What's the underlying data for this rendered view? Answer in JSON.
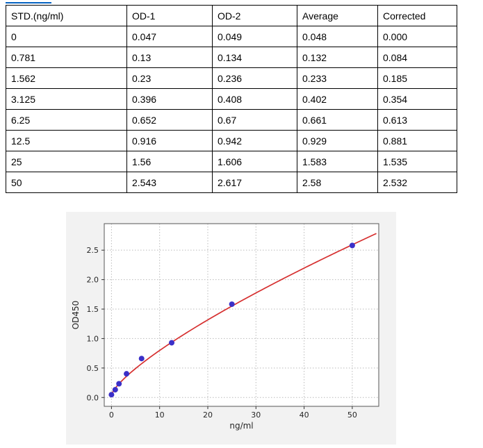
{
  "link_fragment": {
    "present": true
  },
  "table": {
    "headers": [
      "STD.(ng/ml)",
      "OD-1",
      "OD-2",
      "Average",
      "Corrected"
    ],
    "rows": [
      [
        "0",
        "0.047",
        "0.049",
        "0.048",
        "0.000"
      ],
      [
        "0.781",
        "0.13",
        "0.134",
        "0.132",
        "0.084"
      ],
      [
        "1.562",
        "0.23",
        "0.236",
        "0.233",
        "0.185"
      ],
      [
        "3.125",
        "0.396",
        "0.408",
        "0.402",
        "0.354"
      ],
      [
        "6.25",
        "0.652",
        "0.67",
        "0.661",
        "0.613"
      ],
      [
        "12.5",
        "0.916",
        "0.942",
        "0.929",
        "0.881"
      ],
      [
        "25",
        "1.56",
        "1.606",
        "1.583",
        "1.535"
      ],
      [
        "50",
        "2.543",
        "2.617",
        "2.58",
        "2.532"
      ]
    ]
  },
  "chart_data": {
    "type": "scatter",
    "title": "",
    "xlabel": "ng/ml",
    "ylabel": "OD450",
    "x": [
      0,
      0.781,
      1.562,
      3.125,
      6.25,
      12.5,
      25,
      50
    ],
    "y": [
      0.048,
      0.132,
      0.233,
      0.402,
      0.661,
      0.929,
      1.583,
      2.58
    ],
    "series": [
      {
        "name": "standard-points",
        "marker": "circle",
        "values": [
          0.048,
          0.132,
          0.233,
          0.402,
          0.661,
          0.929,
          1.583,
          2.58
        ]
      }
    ],
    "fit_curve": {
      "type": "power",
      "formula": "y = c + a*x^b",
      "a": 0.13,
      "b": 0.76,
      "c": 0.05,
      "x_range": [
        0,
        55
      ]
    },
    "xticks": [
      0,
      10,
      20,
      30,
      40,
      50
    ],
    "yticks": [
      0.0,
      0.5,
      1.0,
      1.5,
      2.0,
      2.5
    ],
    "xlim": [
      -1.5,
      55.5
    ],
    "ylim": [
      -0.15,
      2.95
    ],
    "grid": "dotted",
    "legend": "none"
  },
  "colors": {
    "point": "#3b30c8",
    "curve": "#d62f2f",
    "figure_bg": "#f2f2f2",
    "plot_bg": "#ffffff",
    "grid": "#bababa",
    "frame": "#555555",
    "tick": "#333333",
    "link_blue": "#0563c1",
    "table_border": "#000000"
  }
}
